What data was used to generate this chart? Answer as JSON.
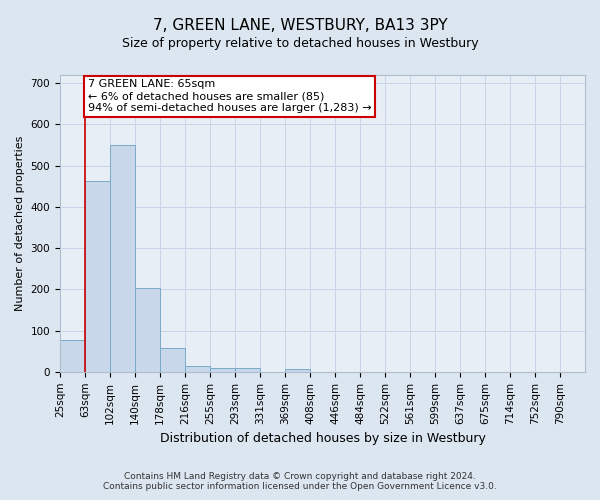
{
  "title": "7, GREEN LANE, WESTBURY, BA13 3PY",
  "subtitle": "Size of property relative to detached houses in Westbury",
  "xlabel": "Distribution of detached houses by size in Westbury",
  "ylabel": "Number of detached properties",
  "footer_line1": "Contains HM Land Registry data © Crown copyright and database right 2024.",
  "footer_line2": "Contains public sector information licensed under the Open Government Licence v3.0.",
  "bin_labels": [
    "25sqm",
    "63sqm",
    "102sqm",
    "140sqm",
    "178sqm",
    "216sqm",
    "255sqm",
    "293sqm",
    "331sqm",
    "369sqm",
    "408sqm",
    "446sqm",
    "484sqm",
    "522sqm",
    "561sqm",
    "599sqm",
    "637sqm",
    "675sqm",
    "714sqm",
    "752sqm",
    "790sqm"
  ],
  "bar_heights": [
    78,
    463,
    550,
    203,
    57,
    15,
    10,
    10,
    0,
    8,
    0,
    0,
    0,
    0,
    0,
    0,
    0,
    0,
    0,
    0
  ],
  "bar_color": "#c8d8ea",
  "bar_edge_color": "#7aaac8",
  "vline_color": "#cc0000",
  "vline_x_bin": 1,
  "annotation_box_color": "#ffffff",
  "annotation_box_edge": "#cc0000",
  "ann_label": "7 GREEN LANE: 65sqm",
  "ann_line2": "← 6% of detached houses are smaller (85)",
  "ann_line3": "94% of semi-detached houses are larger (1,283) →",
  "ylim": [
    0,
    720
  ],
  "yticks": [
    0,
    100,
    200,
    300,
    400,
    500,
    600,
    700
  ],
  "grid_color": "#c8d4e8",
  "bg_color": "#dce6f0",
  "plot_bg_color": "#e8eef6",
  "title_fontsize": 11,
  "subtitle_fontsize": 9,
  "ylabel_fontsize": 8,
  "xlabel_fontsize": 9,
  "tick_fontsize": 7.5,
  "ann_fontsize": 8,
  "footer_fontsize": 6.5
}
